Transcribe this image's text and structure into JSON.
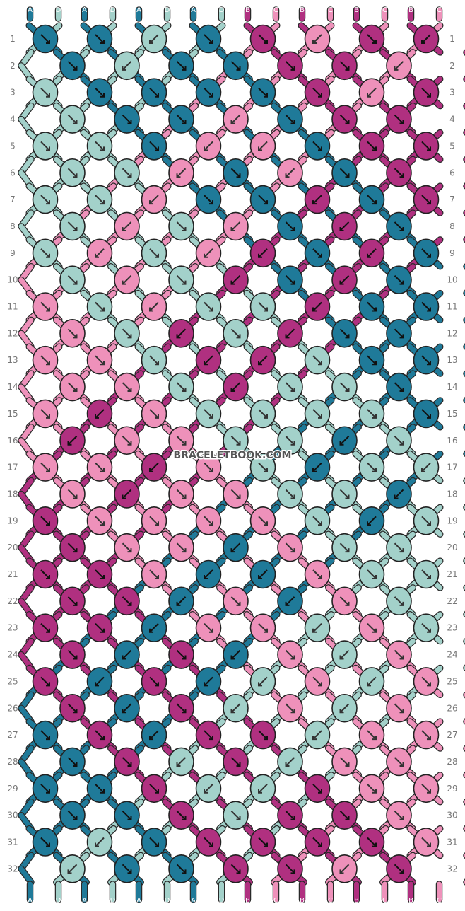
{
  "watermark": "BRACELETBOOK.COM",
  "colors": {
    "A": "#1f7a99",
    "D": "#a3d1ca",
    "B": "#b03080",
    "C": "#ee91ba"
  },
  "strands_top": [
    "A",
    "D",
    "A",
    "D",
    "A",
    "D",
    "A",
    "D",
    "B",
    "C",
    "B",
    "C",
    "B",
    "C",
    "B",
    "C"
  ],
  "strands_bottom": [
    "A",
    "D",
    "A",
    "D",
    "A",
    "D",
    "A",
    "D",
    "B",
    "C",
    "B",
    "C",
    "B",
    "C",
    "B",
    "C"
  ],
  "row_numbers": [
    "1",
    "2",
    "3",
    "4",
    "5",
    "6",
    "7",
    "8",
    "9",
    "10",
    "11",
    "12",
    "13",
    "14",
    "15",
    "16",
    "17",
    "18",
    "19",
    "20",
    "21",
    "22",
    "23",
    "24",
    "25",
    "26",
    "27",
    "28",
    "29",
    "30",
    "31",
    "32"
  ],
  "knots": [
    [
      [
        "A",
        "f"
      ],
      [
        "A",
        "f"
      ],
      [
        "D",
        "b"
      ],
      [
        "A",
        "f"
      ],
      [
        "B",
        "f"
      ],
      [
        "C",
        "b"
      ],
      [
        "B",
        "f"
      ],
      [
        "B",
        "b"
      ]
    ],
    [
      [
        "A",
        "f"
      ],
      [
        "D",
        "b"
      ],
      [
        "A",
        "f"
      ],
      [
        "A",
        "f"
      ],
      [
        "B",
        "f"
      ],
      [
        "B",
        "f"
      ],
      [
        "C",
        "b"
      ]
    ],
    [
      [
        "D",
        "f"
      ],
      [
        "A",
        "f"
      ],
      [
        "A",
        "f"
      ],
      [
        "A",
        "f"
      ],
      [
        "A",
        "f"
      ],
      [
        "B",
        "f"
      ],
      [
        "C",
        "b"
      ],
      [
        "B",
        "f"
      ]
    ],
    [
      [
        "D",
        "f"
      ],
      [
        "A",
        "f"
      ],
      [
        "A",
        "f"
      ],
      [
        "C",
        "b"
      ],
      [
        "A",
        "f"
      ],
      [
        "B",
        "f"
      ],
      [
        "B",
        "f"
      ]
    ],
    [
      [
        "D",
        "f"
      ],
      [
        "D",
        "f"
      ],
      [
        "A",
        "f"
      ],
      [
        "C",
        "b"
      ],
      [
        "C",
        "b"
      ],
      [
        "A",
        "f"
      ],
      [
        "B",
        "f"
      ],
      [
        "B",
        "f"
      ]
    ],
    [
      [
        "D",
        "f"
      ],
      [
        "D",
        "f"
      ],
      [
        "C",
        "b"
      ],
      [
        "A",
        "f"
      ],
      [
        "C",
        "b"
      ],
      [
        "A",
        "f"
      ],
      [
        "B",
        "f"
      ]
    ],
    [
      [
        "D",
        "f"
      ],
      [
        "D",
        "f"
      ],
      [
        "C",
        "b"
      ],
      [
        "A",
        "f"
      ],
      [
        "A",
        "f"
      ],
      [
        "B",
        "b"
      ],
      [
        "A",
        "f"
      ],
      [
        "B",
        "f"
      ]
    ],
    [
      [
        "D",
        "f"
      ],
      [
        "C",
        "b"
      ],
      [
        "D",
        "f"
      ],
      [
        "C",
        "b"
      ],
      [
        "A",
        "f"
      ],
      [
        "B",
        "b"
      ],
      [
        "A",
        "f"
      ]
    ],
    [
      [
        "D",
        "f"
      ],
      [
        "C",
        "b"
      ],
      [
        "D",
        "f"
      ],
      [
        "C",
        "b"
      ],
      [
        "B",
        "b"
      ],
      [
        "A",
        "f"
      ],
      [
        "B",
        "b"
      ],
      [
        "A",
        "f"
      ]
    ],
    [
      [
        "D",
        "f"
      ],
      [
        "C",
        "b"
      ],
      [
        "D",
        "f"
      ],
      [
        "B",
        "b"
      ],
      [
        "A",
        "f"
      ],
      [
        "B",
        "b"
      ],
      [
        "A",
        "f"
      ]
    ],
    [
      [
        "C",
        "f"
      ],
      [
        "D",
        "f"
      ],
      [
        "C",
        "b"
      ],
      [
        "D",
        "f"
      ],
      [
        "D",
        "f"
      ],
      [
        "B",
        "b"
      ],
      [
        "A",
        "f"
      ],
      [
        "A",
        "f"
      ]
    ],
    [
      [
        "C",
        "f"
      ],
      [
        "D",
        "f"
      ],
      [
        "B",
        "b"
      ],
      [
        "D",
        "f"
      ],
      [
        "B",
        "b"
      ],
      [
        "A",
        "f"
      ],
      [
        "A",
        "f"
      ]
    ],
    [
      [
        "C",
        "f"
      ],
      [
        "C",
        "f"
      ],
      [
        "D",
        "f"
      ],
      [
        "B",
        "b"
      ],
      [
        "B",
        "b"
      ],
      [
        "D",
        "f"
      ],
      [
        "A",
        "f"
      ],
      [
        "A",
        "f"
      ]
    ],
    [
      [
        "C",
        "f"
      ],
      [
        "C",
        "f"
      ],
      [
        "D",
        "f"
      ],
      [
        "B",
        "b"
      ],
      [
        "D",
        "f"
      ],
      [
        "D",
        "f"
      ],
      [
        "A",
        "f"
      ]
    ],
    [
      [
        "C",
        "f"
      ],
      [
        "B",
        "b"
      ],
      [
        "C",
        "f"
      ],
      [
        "D",
        "f"
      ],
      [
        "D",
        "f"
      ],
      [
        "D",
        "f"
      ],
      [
        "D",
        "f"
      ],
      [
        "A",
        "f"
      ]
    ],
    [
      [
        "B",
        "b"
      ],
      [
        "C",
        "f"
      ],
      [
        "C",
        "f"
      ],
      [
        "D",
        "f"
      ],
      [
        "D",
        "f"
      ],
      [
        "A",
        "b"
      ],
      [
        "D",
        "f"
      ]
    ],
    [
      [
        "C",
        "f"
      ],
      [
        "C",
        "f"
      ],
      [
        "B",
        "b"
      ],
      [
        "C",
        "f"
      ],
      [
        "D",
        "f"
      ],
      [
        "A",
        "b"
      ],
      [
        "D",
        "f"
      ],
      [
        "D",
        "b"
      ]
    ],
    [
      [
        "C",
        "f"
      ],
      [
        "B",
        "b"
      ],
      [
        "C",
        "f"
      ],
      [
        "C",
        "f"
      ],
      [
        "D",
        "f"
      ],
      [
        "D",
        "f"
      ],
      [
        "A",
        "b"
      ]
    ],
    [
      [
        "B",
        "f"
      ],
      [
        "C",
        "f"
      ],
      [
        "C",
        "f"
      ],
      [
        "C",
        "f"
      ],
      [
        "C",
        "f"
      ],
      [
        "D",
        "f"
      ],
      [
        "A",
        "b"
      ],
      [
        "D",
        "f"
      ]
    ],
    [
      [
        "B",
        "f"
      ],
      [
        "C",
        "f"
      ],
      [
        "C",
        "f"
      ],
      [
        "A",
        "b"
      ],
      [
        "C",
        "f"
      ],
      [
        "D",
        "f"
      ],
      [
        "D",
        "f"
      ]
    ],
    [
      [
        "B",
        "f"
      ],
      [
        "B",
        "f"
      ],
      [
        "C",
        "f"
      ],
      [
        "A",
        "b"
      ],
      [
        "A",
        "b"
      ],
      [
        "C",
        "f"
      ],
      [
        "D",
        "f"
      ],
      [
        "D",
        "f"
      ]
    ],
    [
      [
        "B",
        "f"
      ],
      [
        "B",
        "f"
      ],
      [
        "A",
        "b"
      ],
      [
        "C",
        "f"
      ],
      [
        "A",
        "b"
      ],
      [
        "C",
        "f"
      ],
      [
        "D",
        "f"
      ]
    ],
    [
      [
        "B",
        "f"
      ],
      [
        "B",
        "f"
      ],
      [
        "A",
        "b"
      ],
      [
        "C",
        "f"
      ],
      [
        "C",
        "f"
      ],
      [
        "D",
        "b"
      ],
      [
        "C",
        "f"
      ],
      [
        "D",
        "f"
      ]
    ],
    [
      [
        "B",
        "f"
      ],
      [
        "A",
        "b"
      ],
      [
        "B",
        "f"
      ],
      [
        "A",
        "b"
      ],
      [
        "C",
        "f"
      ],
      [
        "D",
        "b"
      ],
      [
        "C",
        "f"
      ]
    ],
    [
      [
        "B",
        "f"
      ],
      [
        "A",
        "b"
      ],
      [
        "B",
        "f"
      ],
      [
        "A",
        "b"
      ],
      [
        "D",
        "b"
      ],
      [
        "C",
        "f"
      ],
      [
        "D",
        "b"
      ],
      [
        "C",
        "f"
      ]
    ],
    [
      [
        "B",
        "f"
      ],
      [
        "A",
        "b"
      ],
      [
        "B",
        "f"
      ],
      [
        "D",
        "b"
      ],
      [
        "C",
        "f"
      ],
      [
        "D",
        "b"
      ],
      [
        "C",
        "f"
      ]
    ],
    [
      [
        "A",
        "f"
      ],
      [
        "B",
        "f"
      ],
      [
        "A",
        "b"
      ],
      [
        "B",
        "f"
      ],
      [
        "B",
        "f"
      ],
      [
        "D",
        "b"
      ],
      [
        "C",
        "f"
      ],
      [
        "C",
        "f"
      ]
    ],
    [
      [
        "A",
        "f"
      ],
      [
        "B",
        "f"
      ],
      [
        "D",
        "b"
      ],
      [
        "B",
        "f"
      ],
      [
        "D",
        "b"
      ],
      [
        "C",
        "f"
      ],
      [
        "C",
        "f"
      ]
    ],
    [
      [
        "A",
        "f"
      ],
      [
        "A",
        "f"
      ],
      [
        "B",
        "f"
      ],
      [
        "D",
        "b"
      ],
      [
        "D",
        "b"
      ],
      [
        "B",
        "f"
      ],
      [
        "C",
        "f"
      ],
      [
        "C",
        "f"
      ]
    ],
    [
      [
        "A",
        "f"
      ],
      [
        "A",
        "f"
      ],
      [
        "B",
        "f"
      ],
      [
        "D",
        "f"
      ],
      [
        "B",
        "f"
      ],
      [
        "B",
        "f"
      ],
      [
        "C",
        "f"
      ]
    ],
    [
      [
        "A",
        "f"
      ],
      [
        "D",
        "b"
      ],
      [
        "A",
        "f"
      ],
      [
        "B",
        "f"
      ],
      [
        "B",
        "f"
      ],
      [
        "B",
        "f"
      ],
      [
        "B",
        "f"
      ],
      [
        "C",
        "f"
      ]
    ],
    [
      [
        "D",
        "b"
      ],
      [
        "A",
        "f"
      ],
      [
        "A",
        "f"
      ],
      [
        "B",
        "f"
      ],
      [
        "B",
        "f"
      ],
      [
        "C",
        "b"
      ],
      [
        "B",
        "f"
      ]
    ]
  ]
}
